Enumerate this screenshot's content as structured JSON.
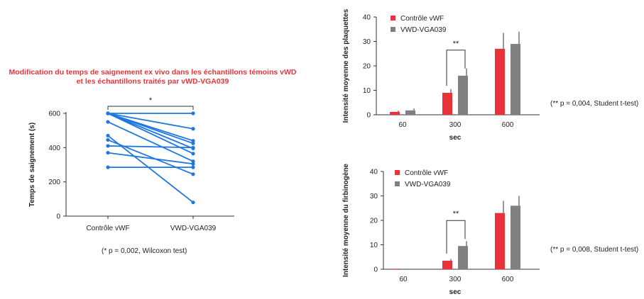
{
  "chart_data": [
    {
      "type": "line",
      "title": "Modification du temps de saignement ex vivo dans les échantillons témoins vWD et les échantillons traités par vWD-VGA039",
      "title_lines": [
        "Modification du temps de saignement ex vivo dans les échantillons témoins vWD",
        "et les échantillons traités par vWD-VGA039"
      ],
      "xlabel": "",
      "ylabel": "Temps de saignement (s)",
      "categories": [
        "Contrôle vWF",
        "VWD-VGA039"
      ],
      "ylim": [
        0,
        600
      ],
      "yticks": [
        0,
        200,
        400,
        600
      ],
      "series": [
        {
          "name": "1",
          "values": [
            600,
            600
          ]
        },
        {
          "name": "2",
          "values": [
            600,
            510
          ]
        },
        {
          "name": "3",
          "values": [
            600,
            440
          ]
        },
        {
          "name": "4",
          "values": [
            600,
            425
          ]
        },
        {
          "name": "5",
          "values": [
            600,
            395
          ]
        },
        {
          "name": "6",
          "values": [
            600,
            365
          ]
        },
        {
          "name": "7",
          "values": [
            550,
            320
          ]
        },
        {
          "name": "8",
          "values": [
            470,
            80
          ]
        },
        {
          "name": "9",
          "values": [
            445,
            245
          ]
        },
        {
          "name": "10",
          "values": [
            410,
            400
          ]
        },
        {
          "name": "11",
          "values": [
            370,
            305
          ]
        },
        {
          "name": "12",
          "values": [
            285,
            285
          ]
        }
      ],
      "significance": "*",
      "color": "#1f77e0",
      "footnote": "(* p = 0,002, Wilcoxon test)"
    },
    {
      "type": "bar",
      "title": "",
      "xlabel": "sec",
      "ylabel": "Intensité moyenne des plaquettes",
      "categories": [
        "60",
        "300",
        "600"
      ],
      "ylim": [
        0,
        40
      ],
      "yticks": [
        0,
        10,
        20,
        30,
        40
      ],
      "series": [
        {
          "name": "Contrôle vWF",
          "color": "#e8333a",
          "values": [
            1.2,
            9,
            27
          ],
          "errors": [
            0.5,
            1.5,
            6.5
          ]
        },
        {
          "name": "VWD-VGA039",
          "color": "#808080",
          "values": [
            1.8,
            16,
            29
          ],
          "errors": [
            0.8,
            3,
            5
          ]
        }
      ],
      "significance": "**",
      "significance_category": "300",
      "legend": "top-left",
      "footnote": "(** p = 0,004, Student t-test)"
    },
    {
      "type": "bar",
      "title": "",
      "xlabel": "sec",
      "ylabel": "Intensité moyenne du firbinogène",
      "categories": [
        "60",
        "300",
        "600"
      ],
      "ylim": [
        0,
        40
      ],
      "yticks": [
        0,
        10,
        20,
        30,
        40
      ],
      "series": [
        {
          "name": "Contrôle vWF",
          "color": "#e8333a",
          "values": [
            0.2,
            3.5,
            23
          ],
          "errors": [
            0.1,
            0.7,
            5
          ]
        },
        {
          "name": "VWD-VGA039",
          "color": "#808080",
          "values": [
            0,
            9.5,
            26
          ],
          "errors": [
            0,
            2,
            4
          ]
        }
      ],
      "significance": "**",
      "significance_category": "300",
      "legend": "top-left",
      "footnote": "(** p = 0,008, Student t-test)"
    }
  ]
}
